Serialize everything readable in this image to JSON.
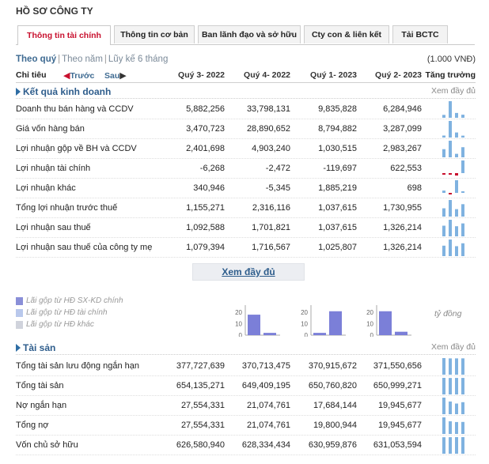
{
  "page_title": "HỒ SƠ CÔNG TY",
  "tabs": [
    {
      "label": "Thông tin tài chính"
    },
    {
      "label": "Thông tin cơ bản"
    },
    {
      "label": "Ban lãnh đạo và sở hữu"
    },
    {
      "label": "Cty con & liên kết"
    },
    {
      "label": "Tải BCTC"
    }
  ],
  "period": {
    "options": [
      "Theo quý",
      "Theo năm",
      "Lũy kế 6 tháng"
    ],
    "active": 0,
    "unit": "(1.000 VNĐ)"
  },
  "header": {
    "label": "Chỉ tiêu",
    "prev": "Trước",
    "next": "Sau",
    "columns": [
      "Quý 3- 2022",
      "Quý 4- 2022",
      "Quý 1- 2023",
      "Quý 2- 2023"
    ],
    "growth": "Tăng trưởng"
  },
  "colors": {
    "accent": "#c8102e",
    "link": "#2e5d8c",
    "spark": "#7fb2e0",
    "spark_negative": "#c8102e",
    "bar_main": "#7b7fd8"
  },
  "sections": [
    {
      "title": "Kết quả kinh doanh",
      "more": "Xem đầy đủ",
      "rows": [
        {
          "name": "Doanh thu bán hàng và CCDV",
          "values": [
            "5,882,256",
            "33,798,131",
            "9,835,828",
            "6,284,946"
          ]
        },
        {
          "name": "Giá vốn hàng bán",
          "values": [
            "3,470,723",
            "28,890,652",
            "8,794,882",
            "3,287,099"
          ]
        },
        {
          "name": "Lợi nhuận gộp về BH và CCDV",
          "values": [
            "2,401,698",
            "4,903,240",
            "1,030,515",
            "2,983,267"
          ]
        },
        {
          "name": "Lợi nhuận tài chính",
          "values": [
            "-6,268",
            "-2,472",
            "-119,697",
            "622,553"
          ]
        },
        {
          "name": "Lợi nhuận khác",
          "values": [
            "340,946",
            "-5,345",
            "1,885,219",
            "698"
          ]
        },
        {
          "name": "Tổng lợi nhuận trước thuế",
          "values": [
            "1,155,271",
            "2,316,116",
            "1,037,615",
            "1,730,955"
          ]
        },
        {
          "name": "Lợi nhuận sau thuế",
          "values": [
            "1,092,588",
            "1,701,821",
            "1,037,615",
            "1,326,214"
          ]
        },
        {
          "name": "Lợi nhuận sau thuế của công ty mẹ",
          "values": [
            "1,079,394",
            "1,716,567",
            "1,025,807",
            "1,326,214"
          ]
        }
      ]
    },
    {
      "title": "Tài sản",
      "more": "Xem đầy đủ",
      "rows": [
        {
          "name": "Tổng tài sản lưu động ngắn hạn",
          "values": [
            "377,727,639",
            "370,713,475",
            "370,915,672",
            "371,550,656"
          ]
        },
        {
          "name": "Tổng tài sản",
          "values": [
            "654,135,271",
            "649,409,195",
            "650,760,820",
            "650,999,271"
          ]
        },
        {
          "name": "Nợ ngắn hạn",
          "values": [
            "27,554,331",
            "21,074,761",
            "17,684,144",
            "19,945,677"
          ]
        },
        {
          "name": "Tổng nợ",
          "values": [
            "27,554,331",
            "21,074,761",
            "19,800,944",
            "19,945,677"
          ]
        },
        {
          "name": "Vốn chủ sở hữu",
          "values": [
            "626,580,940",
            "628,334,434",
            "630,959,876",
            "631,053,594"
          ]
        }
      ]
    }
  ],
  "more_button": "Xem đầy đủ",
  "legend": [
    {
      "label": "Lãi gộp từ HĐ SX-KD chính",
      "color": "#8a8fd8"
    },
    {
      "label": "Lãi gộp từ HĐ tài chính",
      "color": "#b9c8ec"
    },
    {
      "label": "Lãi gộp từ HĐ khác",
      "color": "#d0d3dc"
    }
  ],
  "mini_axis_ticks": [
    "20",
    "10",
    "0"
  ],
  "chart_data": {
    "type": "bar",
    "categories": [
      "Quý 3- 2022",
      "Quý 4- 2022",
      "Quý 1- 2023",
      "Quý 2- 2023"
    ],
    "series": [
      {
        "name": "Lãi gộp từ HĐ SX-KD chính",
        "values": [
          18,
          2,
          21,
          3
        ]
      }
    ],
    "ylim": [
      0,
      25
    ]
  },
  "growth_label": "tỷ đồng"
}
